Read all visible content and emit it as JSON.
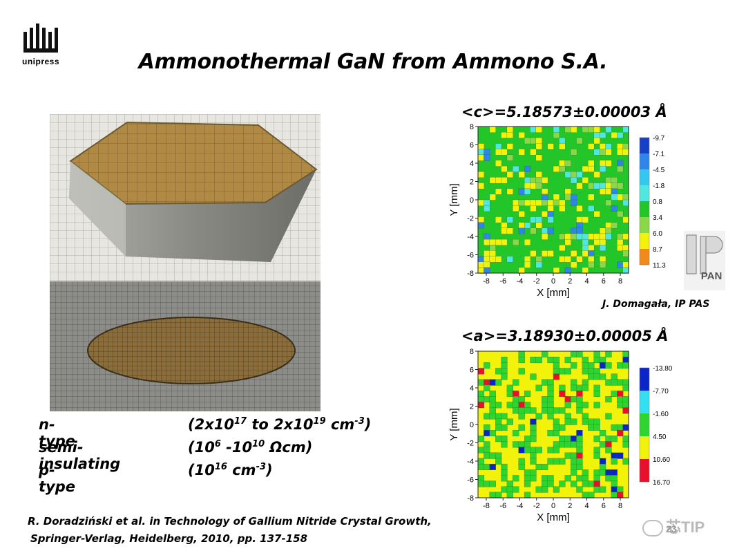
{
  "slide": {
    "title": "Ammonothermal GaN from Ammono S.A.",
    "logo_text": "unipress",
    "slide_number": "23"
  },
  "properties": [
    {
      "name": "n-type",
      "base": "(2x10",
      "exp1": "17",
      "mid": " to 2x10",
      "exp2": "19",
      "unit": " cm",
      "exp3": "-3",
      "end": ")"
    },
    {
      "name": "semi-insulating",
      "base": "(10",
      "exp1": "6",
      "mid": " -10",
      "exp2": "10",
      "unit": " Ωcm)",
      "exp3": "",
      "end": ""
    },
    {
      "name": "p-type",
      "base": "(10",
      "exp1": "16",
      "mid": " cm",
      "exp2": "-3",
      "unit": ")",
      "exp3": "",
      "end": ""
    }
  ],
  "reference": {
    "line1": "R. Doradziński et al. in Technology of Gallium Nitride Crystal Growth,",
    "line2": "Springer-Verlag,  Heidelberg, 2010, pp. 137-158"
  },
  "maps": {
    "c": {
      "title": "<c>=5.18573±0.00003 Å",
      "legend": [
        "-9.7",
        "-7.1",
        "-4.5",
        "-1.8",
        "0.8",
        "3.4",
        "6.0",
        "8.7",
        "11.3"
      ],
      "colors": [
        "#1740c8",
        "#2f86e8",
        "#33c8ee",
        "#4fe7e0",
        "#22c628",
        "#8ad84a",
        "#f2f20a",
        "#f08a1a",
        "#e8102a"
      ]
    },
    "a": {
      "title": "<a>=3.18930±0.00005 Å",
      "legend": [
        "-13.80",
        "-7.70",
        "-1.60",
        "4.50",
        "10.60",
        "16.70"
      ],
      "colors": [
        "#0a26c8",
        "#33e0f0",
        "#2ed52e",
        "#f2f20a",
        "#e8102a"
      ]
    },
    "x_label": "X [mm]",
    "y_label": "Y  [mm]",
    "x_ticks": [
      "-8",
      "-6",
      "-4",
      "-2",
      "0",
      "2",
      "4",
      "6",
      "8"
    ],
    "y_ticks": [
      "8",
      "6",
      "4",
      "2",
      "0",
      "-2",
      "-4",
      "-6",
      "-8"
    ]
  },
  "author": "J. Domagała, IP PAS",
  "institution_logo_text": "PAN",
  "watermark": "芯TIP"
}
